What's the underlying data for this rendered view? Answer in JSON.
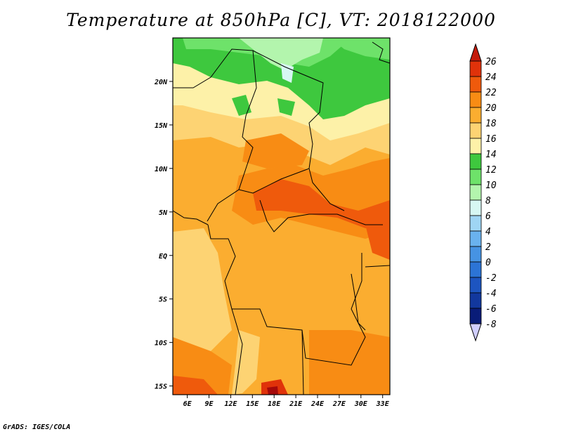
{
  "title": "Temperature at 850hPa [C], VT: 2018122000",
  "footer": "GrADS: IGES/COLA",
  "map": {
    "region": "Central Africa",
    "lon_range": [
      4,
      34
    ],
    "lat_range": [
      -16,
      25
    ],
    "y_ticks": [
      {
        "value": 20,
        "label": "20N"
      },
      {
        "value": 15,
        "label": "15N"
      },
      {
        "value": 10,
        "label": "10N"
      },
      {
        "value": 5,
        "label": "5N"
      },
      {
        "value": 0,
        "label": "EQ"
      },
      {
        "value": -5,
        "label": "5S"
      },
      {
        "value": -10,
        "label": "10S"
      },
      {
        "value": -15,
        "label": "15S"
      }
    ],
    "x_ticks": [
      {
        "value": 6,
        "label": "6E"
      },
      {
        "value": 9,
        "label": "9E"
      },
      {
        "value": 12,
        "label": "12E"
      },
      {
        "value": 15,
        "label": "15E"
      },
      {
        "value": 18,
        "label": "18E"
      },
      {
        "value": 21,
        "label": "21E"
      },
      {
        "value": 24,
        "label": "24E"
      },
      {
        "value": 27,
        "label": "27E"
      },
      {
        "value": 30,
        "label": "30E"
      },
      {
        "value": 33,
        "label": "33E"
      }
    ]
  },
  "colorbar": {
    "labels": [
      "26",
      "24",
      "22",
      "20",
      "18",
      "16",
      "14",
      "12",
      "10",
      "8",
      "6",
      "4",
      "2",
      "0",
      "-2",
      "-4",
      "-6",
      "-8"
    ],
    "colors": [
      "#a50a0a",
      "#e0320a",
      "#ef5a0c",
      "#f88c14",
      "#fbad30",
      "#fdd373",
      "#fdf1a8",
      "#3ec83e",
      "#6ee26a",
      "#b3f5ad",
      "#d7f7f3",
      "#9fd5f4",
      "#6ab2ee",
      "#4693e3",
      "#2c74d6",
      "#1d55c0",
      "#12389e",
      "#091c78",
      "#000a4d"
    ],
    "top_arrow_color": "#c41a0a",
    "bottom_arrow_color": "#d0ceff"
  }
}
